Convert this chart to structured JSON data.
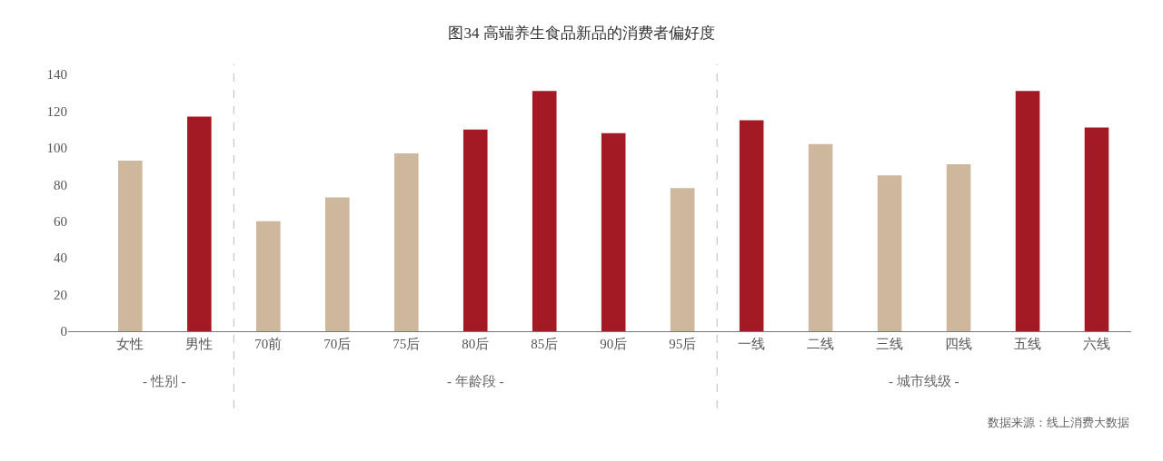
{
  "chart_data": {
    "type": "bar",
    "title": "图34 高端养生食品新品的消费者偏好度",
    "categories": [
      "女性",
      "男性",
      "70前",
      "70后",
      "75后",
      "80后",
      "85后",
      "90后",
      "95后",
      "一线",
      "二线",
      "三线",
      "四线",
      "五线",
      "六线"
    ],
    "values": [
      93,
      117,
      60,
      73,
      97,
      110,
      131,
      108,
      78,
      115,
      102,
      85,
      91,
      131,
      111
    ],
    "colors": [
      "#cdb89e",
      "#a31a24",
      "#cdb89e",
      "#cdb89e",
      "#cdb89e",
      "#a31a24",
      "#a31a24",
      "#a31a24",
      "#cdb89e",
      "#a31a24",
      "#cdb89e",
      "#cdb89e",
      "#cdb89e",
      "#a31a24",
      "#a31a24"
    ],
    "ylim": [
      0,
      140
    ],
    "yticks": [
      0,
      20,
      40,
      60,
      80,
      100,
      120,
      140
    ],
    "annotations": [
      "- 性别 -",
      "- 年龄段 -",
      "- 城市线级 -",
      "数据来源：线上消费大数据"
    ]
  }
}
